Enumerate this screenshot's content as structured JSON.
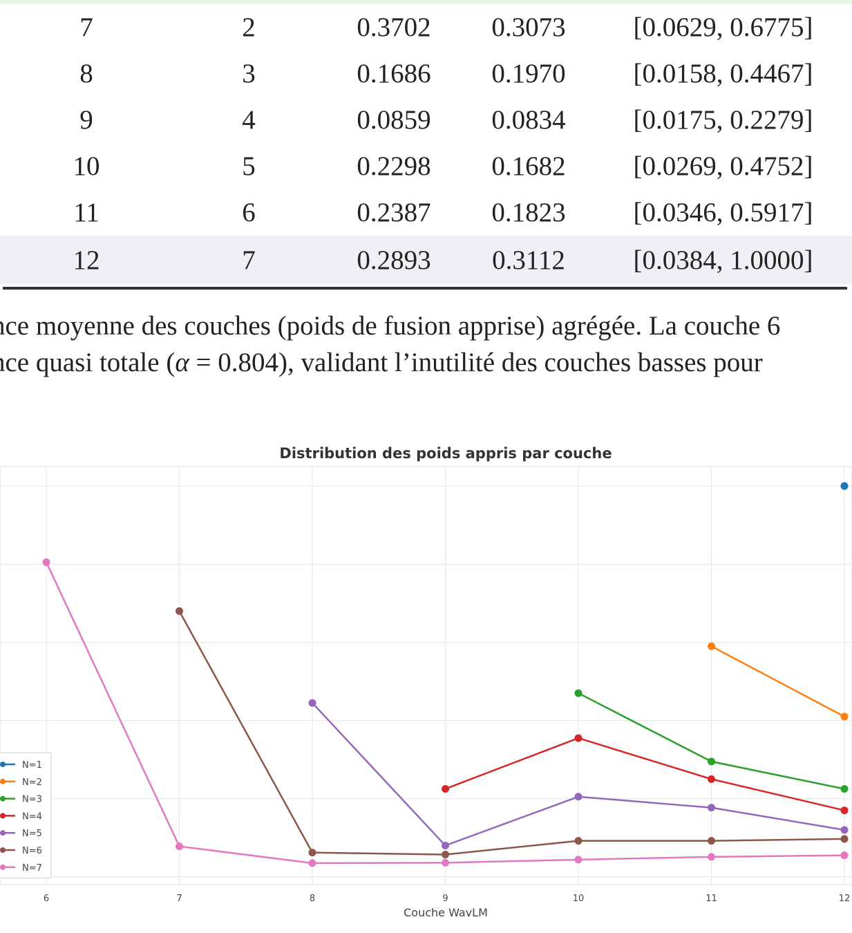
{
  "table": {
    "rows": [
      {
        "couche": "7",
        "n": "2",
        "moy": "0.3702",
        "std": "0.3073",
        "range": "[0.0629, 0.6775]"
      },
      {
        "couche": "8",
        "n": "3",
        "moy": "0.1686",
        "std": "0.1970",
        "range": "[0.0158, 0.4467]"
      },
      {
        "couche": "9",
        "n": "4",
        "moy": "0.0859",
        "std": "0.0834",
        "range": "[0.0175, 0.2279]"
      },
      {
        "couche": "10",
        "n": "5",
        "moy": "0.2298",
        "std": "0.1682",
        "range": "[0.0269, 0.4752]"
      },
      {
        "couche": "11",
        "n": "6",
        "moy": "0.2387",
        "std": "0.1823",
        "range": "[0.0346, 0.5917]"
      },
      {
        "couche": "12",
        "n": "7",
        "moy": "0.2893",
        "std": "0.3112",
        "range": "[0.0384, 1.0000]"
      }
    ]
  },
  "caption": {
    "line1": "nce moyenne des couches (poids de fusion apprise) agrégée. La couche 6",
    "line2_before": "nce quasi totale (",
    "line2_alpha": "α",
    "line2_eq": " = 0.804",
    "line2_after": "), validant l’inutilité des couches basses pour"
  },
  "chart_data": {
    "type": "line",
    "title": "Distribution des poids appris par couche",
    "xlabel": "Couche WavLM",
    "ylabel": "",
    "x_ticks": [
      6,
      7,
      8,
      9,
      10,
      11,
      12
    ],
    "xlim": [
      6,
      12
    ],
    "ylim": [
      -0.02,
      1.05
    ],
    "grid": true,
    "legend_position": "lower-left",
    "series": [
      {
        "name": "N=1",
        "color": "#1f77b4",
        "x": [
          12
        ],
        "y": [
          1.0
        ]
      },
      {
        "name": "N=2",
        "color": "#ff7f0e",
        "x": [
          11,
          12
        ],
        "y": [
          0.59,
          0.41
        ]
      },
      {
        "name": "N=3",
        "color": "#2ca02c",
        "x": [
          10,
          11,
          12
        ],
        "y": [
          0.47,
          0.295,
          0.225
        ]
      },
      {
        "name": "N=4",
        "color": "#d62728",
        "x": [
          9,
          10,
          11,
          12
        ],
        "y": [
          0.225,
          0.355,
          0.25,
          0.17
        ]
      },
      {
        "name": "N=5",
        "color": "#9467bd",
        "x": [
          8,
          9,
          10,
          11,
          12
        ],
        "y": [
          0.445,
          0.08,
          0.205,
          0.177,
          0.12
        ]
      },
      {
        "name": "N=6",
        "color": "#8c564b",
        "x": [
          7,
          8,
          9,
          10,
          11,
          12
        ],
        "y": [
          0.68,
          0.062,
          0.057,
          0.092,
          0.092,
          0.097
        ]
      },
      {
        "name": "N=7",
        "color": "#e377c2",
        "x": [
          6,
          7,
          8,
          9,
          10,
          11,
          12
        ],
        "y": [
          0.805,
          0.078,
          0.035,
          0.036,
          0.044,
          0.051,
          0.055
        ]
      }
    ]
  }
}
